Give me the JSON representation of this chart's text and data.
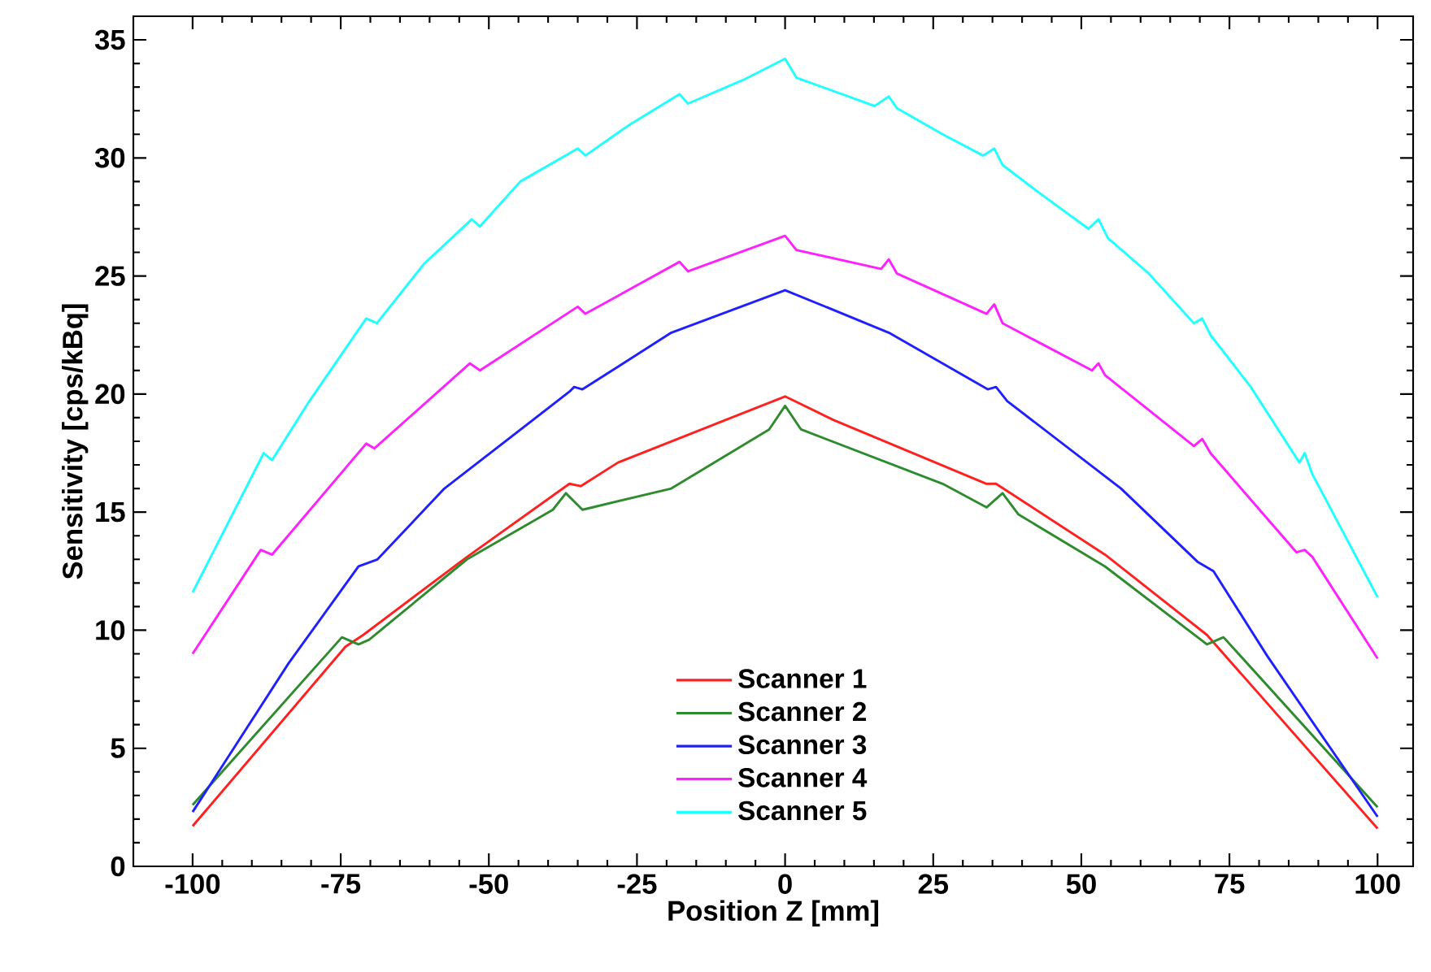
{
  "chart_data": {
    "type": "line",
    "xlabel": "Position Z [mm]",
    "ylabel": "Sensitivity [cps/kBq]",
    "xlim": [
      -110,
      106
    ],
    "ylim": [
      0,
      36
    ],
    "xticks": [
      -100,
      -75,
      -50,
      -25,
      0,
      25,
      50,
      75,
      100
    ],
    "yticks": [
      0,
      5,
      10,
      15,
      20,
      25,
      30,
      35
    ],
    "legend": "bottom",
    "series": [
      {
        "name": "Scanner 1",
        "color": "#ff2020",
        "x": [
          -100,
          -74.2,
          -71.2,
          -53.7,
          -36.4,
          -34.5,
          -28.2,
          0,
          8.2,
          34,
          35.6,
          54,
          71.2,
          100
        ],
        "values": [
          1.7,
          9.3,
          9.8,
          13.1,
          16.2,
          16.1,
          17.1,
          19.9,
          18.9,
          16.2,
          16.2,
          13.2,
          9.8,
          1.6
        ]
      },
      {
        "name": "Scanner 2",
        "color": "#2e8b2e",
        "x": [
          -100,
          -74.8,
          -72,
          -70.2,
          -53.7,
          -39.2,
          -37,
          -34.2,
          -19.2,
          -2.7,
          0,
          2.7,
          26.6,
          34,
          36.7,
          39.4,
          54,
          71.2,
          74,
          100
        ],
        "values": [
          2.6,
          9.7,
          9.4,
          9.6,
          13.0,
          15.1,
          15.8,
          15.1,
          16.0,
          18.5,
          19.5,
          18.5,
          16.2,
          15.2,
          15.8,
          14.9,
          12.7,
          9.4,
          9.7,
          2.5
        ]
      },
      {
        "name": "Scanner 3",
        "color": "#2020ff",
        "x": [
          -100,
          -83.8,
          -72,
          -68.8,
          -57.5,
          -36.4,
          -35.6,
          -34.2,
          -19.2,
          0,
          17.5,
          34.2,
          35.6,
          37.5,
          56.7,
          69.6,
          72.3,
          81.4,
          100
        ],
        "values": [
          2.3,
          8.6,
          12.7,
          13.0,
          16.0,
          20.1,
          20.3,
          20.2,
          22.6,
          24.4,
          22.6,
          20.2,
          20.3,
          19.7,
          16.0,
          12.9,
          12.5,
          8.9,
          2.1
        ]
      },
      {
        "name": "Scanner 4",
        "color": "#ff20ff",
        "x": [
          -100,
          -88.5,
          -86.6,
          -70.7,
          -69.3,
          -53.2,
          -51.5,
          -35,
          -33.7,
          -17.8,
          -16.4,
          0,
          1.9,
          16.2,
          17.5,
          18.9,
          34,
          35.3,
          36.7,
          51.8,
          52.9,
          54,
          69,
          70.4,
          71.8,
          86.3,
          87.7,
          89,
          100
        ],
        "values": [
          9.0,
          13.4,
          13.2,
          17.9,
          17.7,
          21.3,
          21.0,
          23.7,
          23.4,
          25.6,
          25.2,
          26.7,
          26.1,
          25.3,
          25.7,
          25.1,
          23.4,
          23.8,
          23.0,
          21.0,
          21.3,
          20.8,
          17.8,
          18.1,
          17.5,
          13.3,
          13.4,
          13.1,
          8.8
        ]
      },
      {
        "name": "Scanner 5",
        "color": "#20ffff",
        "x": [
          -100,
          -88,
          -86.6,
          -80.3,
          -70.7,
          -68.9,
          -61,
          -52.9,
          -51.5,
          -44.7,
          -35,
          -33.7,
          -26.3,
          -17.8,
          -16.4,
          -7.1,
          0,
          1.9,
          15.1,
          17.5,
          18.9,
          26.6,
          33.4,
          35.3,
          36.7,
          43,
          51.2,
          52.9,
          54.5,
          61.4,
          69,
          70.4,
          71.8,
          78.6,
          86.8,
          87.7,
          89,
          100
        ],
        "values": [
          11.6,
          17.5,
          17.2,
          19.7,
          23.2,
          23.0,
          25.5,
          27.4,
          27.1,
          29.0,
          30.4,
          30.1,
          31.4,
          32.7,
          32.3,
          33.3,
          34.2,
          33.4,
          32.2,
          32.6,
          32.1,
          31.0,
          30.1,
          30.4,
          29.7,
          28.5,
          27.0,
          27.4,
          26.6,
          25.1,
          23.0,
          23.2,
          22.5,
          20.3,
          17.1,
          17.5,
          16.6,
          11.4
        ]
      }
    ]
  }
}
